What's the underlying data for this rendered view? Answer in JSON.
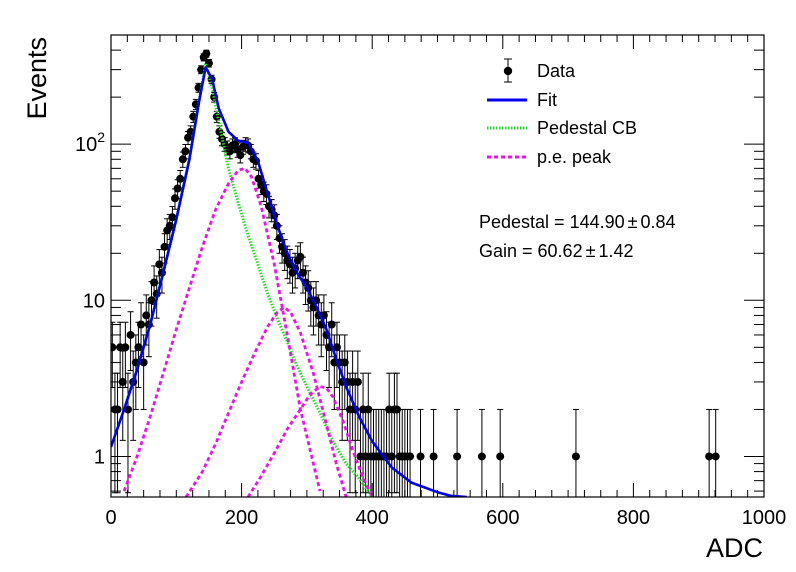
{
  "chart_data": {
    "type": "scatter",
    "title": "",
    "xlabel": "ADC",
    "ylabel": "Events",
    "xlim": [
      0,
      1000
    ],
    "ylim": [
      0.55,
      500
    ],
    "yscale": "log",
    "grid": false,
    "legend_position": "top-right",
    "x_ticks": [
      {
        "value": 0,
        "label": "0"
      },
      {
        "value": 200,
        "label": "200"
      },
      {
        "value": 400,
        "label": "400"
      },
      {
        "value": 600,
        "label": "600"
      },
      {
        "value": 800,
        "label": "800"
      },
      {
        "value": 1000,
        "label": "1000"
      }
    ],
    "y_ticks": [
      {
        "value": 1,
        "label": "1"
      },
      {
        "value": 10,
        "label": "10"
      },
      {
        "value": 100,
        "label": "10",
        "exp": "2"
      }
    ],
    "legend": [
      {
        "label": "Data",
        "marker": "point",
        "color": "#000000"
      },
      {
        "label": "Fit",
        "marker": "line",
        "color": "#0000ee"
      },
      {
        "label": "Pedestal CB",
        "marker": "dotted",
        "color": "#22dd22"
      },
      {
        "label": "p.e. peak",
        "marker": "dashed",
        "color": "#ee11ee"
      }
    ],
    "stats": [
      {
        "label": "Pedestal = 144.90",
        "pm": "±",
        "error": "0.84"
      },
      {
        "label": "Gain = 60.62",
        "pm": "±",
        "error": "1.42"
      }
    ],
    "series": [
      {
        "name": "Data",
        "color": "#000000",
        "points": [
          [
            2,
            5
          ],
          [
            6,
            2
          ],
          [
            10,
            2
          ],
          [
            14,
            5
          ],
          [
            18,
            3
          ],
          [
            22,
            5
          ],
          [
            26,
            2
          ],
          [
            30,
            6
          ],
          [
            34,
            3
          ],
          [
            38,
            4
          ],
          [
            42,
            5
          ],
          [
            46,
            7
          ],
          [
            50,
            4
          ],
          [
            54,
            8
          ],
          [
            58,
            7
          ],
          [
            62,
            10
          ],
          [
            66,
            13
          ],
          [
            70,
            11
          ],
          [
            74,
            17
          ],
          [
            78,
            15
          ],
          [
            82,
            22
          ],
          [
            86,
            28
          ],
          [
            90,
            30
          ],
          [
            94,
            34
          ],
          [
            98,
            45
          ],
          [
            102,
            52
          ],
          [
            106,
            60
          ],
          [
            110,
            80
          ],
          [
            114,
            90
          ],
          [
            118,
            110
          ],
          [
            122,
            120
          ],
          [
            126,
            150
          ],
          [
            130,
            180
          ],
          [
            134,
            230
          ],
          [
            138,
            300
          ],
          [
            142,
            360
          ],
          [
            146,
            380
          ],
          [
            150,
            330
          ],
          [
            154,
            260
          ],
          [
            158,
            200
          ],
          [
            162,
            150
          ],
          [
            166,
            120
          ],
          [
            170,
            108
          ],
          [
            174,
            100
          ],
          [
            178,
            95
          ],
          [
            182,
            90
          ],
          [
            186,
            98
          ],
          [
            190,
            100
          ],
          [
            194,
            92
          ],
          [
            198,
            85
          ],
          [
            202,
            96
          ],
          [
            206,
            100
          ],
          [
            210,
            98
          ],
          [
            214,
            90
          ],
          [
            218,
            80
          ],
          [
            222,
            78
          ],
          [
            226,
            60
          ],
          [
            230,
            55
          ],
          [
            234,
            50
          ],
          [
            238,
            48
          ],
          [
            242,
            40
          ],
          [
            246,
            38
          ],
          [
            250,
            35
          ],
          [
            254,
            30
          ],
          [
            258,
            25
          ],
          [
            262,
            22
          ],
          [
            266,
            20
          ],
          [
            270,
            18
          ],
          [
            274,
            17
          ],
          [
            278,
            15
          ],
          [
            282,
            16
          ],
          [
            286,
            18
          ],
          [
            290,
            19
          ],
          [
            294,
            15
          ],
          [
            298,
            13
          ],
          [
            302,
            12
          ],
          [
            306,
            10
          ],
          [
            310,
            9
          ],
          [
            314,
            10
          ],
          [
            318,
            8
          ],
          [
            322,
            7
          ],
          [
            326,
            8
          ],
          [
            330,
            6
          ],
          [
            334,
            5
          ],
          [
            338,
            7
          ],
          [
            342,
            4
          ],
          [
            346,
            5
          ],
          [
            350,
            4
          ],
          [
            354,
            3
          ],
          [
            358,
            4
          ],
          [
            362,
            3
          ],
          [
            366,
            2
          ],
          [
            370,
            3
          ],
          [
            374,
            2
          ],
          [
            378,
            3
          ],
          [
            382,
            1
          ],
          [
            386,
            2
          ],
          [
            390,
            1
          ],
          [
            394,
            2
          ],
          [
            398,
            1
          ],
          [
            402,
            1
          ],
          [
            406,
            1
          ],
          [
            410,
            1
          ],
          [
            414,
            1
          ],
          [
            418,
            1
          ],
          [
            422,
            1
          ],
          [
            426,
            2
          ],
          [
            430,
            1
          ],
          [
            434,
            2
          ],
          [
            438,
            2
          ],
          [
            442,
            1
          ],
          [
            446,
            1
          ],
          [
            450,
            1
          ],
          [
            454,
            1
          ],
          [
            458,
            1
          ],
          [
            474,
            1
          ],
          [
            494,
            1
          ],
          [
            530,
            1
          ],
          [
            568,
            1
          ],
          [
            596,
            1
          ],
          [
            712,
            1
          ],
          [
            916,
            1
          ],
          [
            926,
            1
          ]
        ]
      },
      {
        "name": "Fit",
        "color": "#0000ee",
        "points": [
          [
            0,
            1.15
          ],
          [
            20,
            2.0
          ],
          [
            40,
            3.6
          ],
          [
            60,
            7
          ],
          [
            80,
            15
          ],
          [
            100,
            33
          ],
          [
            120,
            80
          ],
          [
            135,
            190
          ],
          [
            145,
            310
          ],
          [
            155,
            260
          ],
          [
            165,
            170
          ],
          [
            180,
            120
          ],
          [
            195,
            105
          ],
          [
            210,
            102
          ],
          [
            225,
            78
          ],
          [
            240,
            48
          ],
          [
            255,
            30
          ],
          [
            270,
            20
          ],
          [
            285,
            15
          ],
          [
            300,
            12
          ],
          [
            315,
            9
          ],
          [
            330,
            6.5
          ],
          [
            345,
            4.2
          ],
          [
            360,
            2.8
          ],
          [
            380,
            1.8
          ],
          [
            400,
            1.25
          ],
          [
            430,
            0.85
          ],
          [
            460,
            0.68
          ],
          [
            500,
            0.59
          ],
          [
            520,
            0.56
          ],
          [
            545,
            0.55
          ]
        ]
      },
      {
        "name": "Pedestal CB",
        "color": "#22dd22",
        "points": [
          [
            20,
            2.0
          ],
          [
            40,
            3.6
          ],
          [
            60,
            7
          ],
          [
            80,
            15
          ],
          [
            100,
            33
          ],
          [
            120,
            80
          ],
          [
            135,
            190
          ],
          [
            145,
            330
          ],
          [
            155,
            230
          ],
          [
            165,
            140
          ],
          [
            180,
            70
          ],
          [
            195,
            42
          ],
          [
            210,
            26
          ],
          [
            225,
            17
          ],
          [
            240,
            11
          ],
          [
            255,
            7.6
          ],
          [
            270,
            5.4
          ],
          [
            285,
            3.8
          ],
          [
            300,
            2.8
          ],
          [
            320,
            1.9
          ],
          [
            340,
            1.25
          ],
          [
            360,
            0.9
          ],
          [
            380,
            0.72
          ],
          [
            400,
            0.55
          ]
        ]
      },
      {
        "name": "p.e. peak 1",
        "color": "#ee11ee",
        "points": [
          [
            20,
            0.6
          ],
          [
            40,
            1.0
          ],
          [
            60,
            1.8
          ],
          [
            80,
            3.4
          ],
          [
            100,
            6.5
          ],
          [
            120,
            12
          ],
          [
            140,
            22
          ],
          [
            160,
            38
          ],
          [
            180,
            56
          ],
          [
            195,
            68
          ],
          [
            205,
            70
          ],
          [
            215,
            62
          ],
          [
            230,
            40
          ],
          [
            250,
            17
          ],
          [
            270,
            6
          ],
          [
            290,
            2.0
          ],
          [
            310,
            0.9
          ],
          [
            320,
            0.6
          ]
        ]
      },
      {
        "name": "p.e. peak 2",
        "color": "#ee11ee",
        "points": [
          [
            115,
            0.55
          ],
          [
            140,
            0.8
          ],
          [
            160,
            1.2
          ],
          [
            180,
            1.9
          ],
          [
            200,
            3.0
          ],
          [
            220,
            4.6
          ],
          [
            240,
            6.8
          ],
          [
            255,
            8.4
          ],
          [
            265,
            9.0
          ],
          [
            275,
            8.4
          ],
          [
            290,
            6.2
          ],
          [
            310,
            3.4
          ],
          [
            330,
            1.6
          ],
          [
            345,
            0.9
          ],
          [
            360,
            0.55
          ]
        ]
      },
      {
        "name": "p.e. peak 3",
        "color": "#ee11ee",
        "points": [
          [
            210,
            0.55
          ],
          [
            230,
            0.75
          ],
          [
            250,
            1.05
          ],
          [
            270,
            1.5
          ],
          [
            290,
            2.0
          ],
          [
            305,
            2.5
          ],
          [
            320,
            2.8
          ],
          [
            330,
            2.75
          ],
          [
            340,
            2.4
          ],
          [
            355,
            1.7
          ],
          [
            370,
            1.1
          ],
          [
            385,
            0.75
          ],
          [
            400,
            0.55
          ]
        ]
      }
    ]
  }
}
